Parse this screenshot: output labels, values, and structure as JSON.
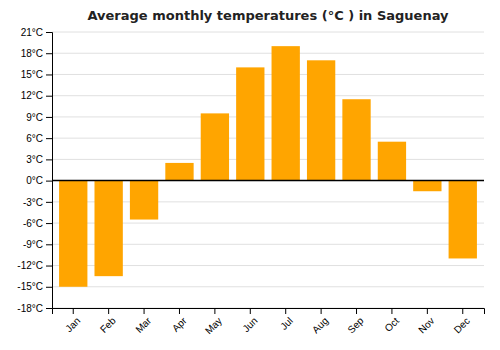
{
  "chart_data": {
    "type": "bar",
    "title": "Average monthly temperatures (°C ) in Saguenay",
    "categories": [
      "Jan",
      "Feb",
      "Mar",
      "Apr",
      "May",
      "Jun",
      "Jul",
      "Aug",
      "Sep",
      "Oct",
      "Nov",
      "Dec"
    ],
    "values": [
      -15,
      -13.5,
      -5.5,
      2.5,
      9.5,
      16,
      19,
      17,
      11.5,
      5.5,
      -1.5,
      -11
    ],
    "color": "#FFA500",
    "ylim": [
      -18,
      21
    ],
    "yticks": [
      {
        "value": -18,
        "label": "-18°C"
      },
      {
        "value": -15,
        "label": "-15°C"
      },
      {
        "value": -12,
        "label": "-12°C"
      },
      {
        "value": -9,
        "label": "-9°C"
      },
      {
        "value": -6,
        "label": "-6°C"
      },
      {
        "value": -3,
        "label": "-3°C"
      },
      {
        "value": 0,
        "label": "0°C"
      },
      {
        "value": 3,
        "label": "3°C"
      },
      {
        "value": 6,
        "label": "6°C"
      },
      {
        "value": 9,
        "label": "9°C"
      },
      {
        "value": 12,
        "label": "12°C"
      },
      {
        "value": 15,
        "label": "15°C"
      },
      {
        "value": 18,
        "label": "18°C"
      },
      {
        "value": 21,
        "label": "21°C"
      }
    ],
    "grid": true
  }
}
